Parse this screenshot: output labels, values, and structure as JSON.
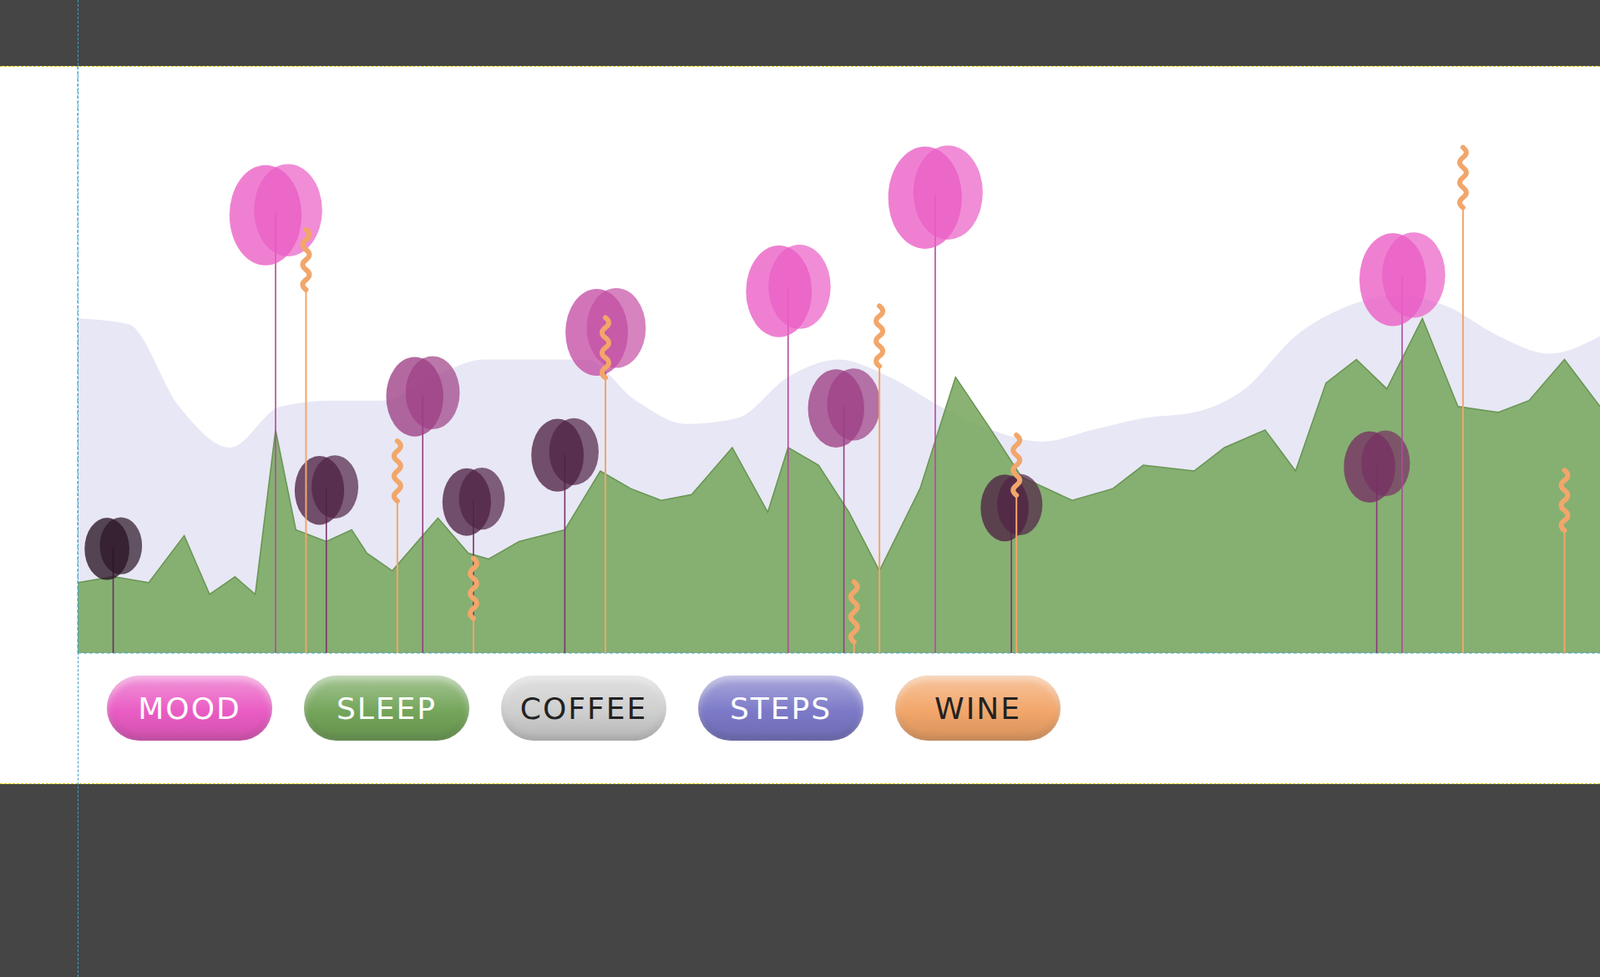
{
  "chart_data": {
    "type": "pictogram",
    "xlim": [
      0,
      30
    ],
    "ylim": [
      0,
      100
    ],
    "tick_labels": false,
    "legend": "bottom left",
    "series": [
      {
        "name": "MOOD",
        "type": "flower",
        "color": "#ea5cc4",
        "x": [
          0.7,
          3.9,
          4.9,
          6.8,
          7.8,
          9.6,
          10.4,
          14.0,
          15.1,
          16.9,
          18.4,
          25.6,
          26.1
        ],
        "values": [
          18,
          75,
          28,
          44,
          26,
          34,
          55,
          62,
          42,
          78,
          25,
          32,
          64
        ]
      },
      {
        "name": "SLEEP",
        "type": "area",
        "color": "#74a55a",
        "x": [
          0,
          0.7,
          1.4,
          2.1,
          2.6,
          3.1,
          3.5,
          3.9,
          4.3,
          4.9,
          5.4,
          5.7,
          6.2,
          7.1,
          7.7,
          8.1,
          8.7,
          9.6,
          10.3,
          10.9,
          11.5,
          12.1,
          12.9,
          13.6,
          14.0,
          14.6,
          15.2,
          15.8,
          16.6,
          17.3,
          18.0,
          18.6,
          19.6,
          20.4,
          21.0,
          22.0,
          22.6,
          23.4,
          24.0,
          24.6,
          25.2,
          25.8,
          26.5,
          27.2,
          28.0,
          28.6,
          29.3,
          30.0
        ],
        "values": [
          12,
          13,
          12,
          20,
          10,
          13,
          10,
          38,
          21,
          19,
          21,
          17,
          14,
          23,
          17,
          16,
          19,
          21,
          31,
          28,
          26,
          27,
          35,
          24,
          35,
          32,
          24,
          14,
          28,
          47,
          38,
          30,
          26,
          28,
          32,
          31,
          35,
          38,
          31,
          46,
          50,
          45,
          57,
          42,
          41,
          43,
          50,
          42
        ]
      },
      {
        "name": "COFFEE",
        "type": "flower_shade",
        "color": "#cfcfcf",
        "x": [
          0.7,
          3.9,
          4.9,
          6.8,
          7.8,
          9.6,
          10.4,
          14.0,
          15.1,
          16.9,
          18.4,
          25.6,
          26.1
        ],
        "values": [
          5,
          0,
          4,
          2,
          4,
          4,
          1,
          0,
          2,
          0,
          4,
          3,
          0
        ]
      },
      {
        "name": "STEPS",
        "type": "area",
        "color": "#7c7ac8",
        "x": [
          0,
          1,
          2,
          3,
          4,
          5,
          6,
          7,
          8,
          9,
          10,
          11,
          12,
          13,
          14,
          15,
          16,
          17,
          18,
          19,
          20,
          21,
          22,
          23,
          24,
          25,
          26,
          27,
          28,
          29,
          30
        ],
        "values": [
          57,
          56,
          42,
          35,
          42,
          43,
          43,
          47,
          50,
          50,
          50,
          43,
          39,
          40,
          47,
          50,
          47,
          42,
          38,
          36,
          38,
          40,
          41,
          45,
          54,
          59,
          61,
          59,
          54,
          51,
          54
        ]
      },
      {
        "name": "WINE",
        "type": "squiggle",
        "color": "#f2a66a",
        "x": [
          4.5,
          6.3,
          7.8,
          10.4,
          15.3,
          15.8,
          18.5,
          27.3,
          29.3
        ],
        "values": [
          67,
          31,
          11,
          52,
          7,
          54,
          32,
          81,
          26
        ]
      }
    ]
  }
}
